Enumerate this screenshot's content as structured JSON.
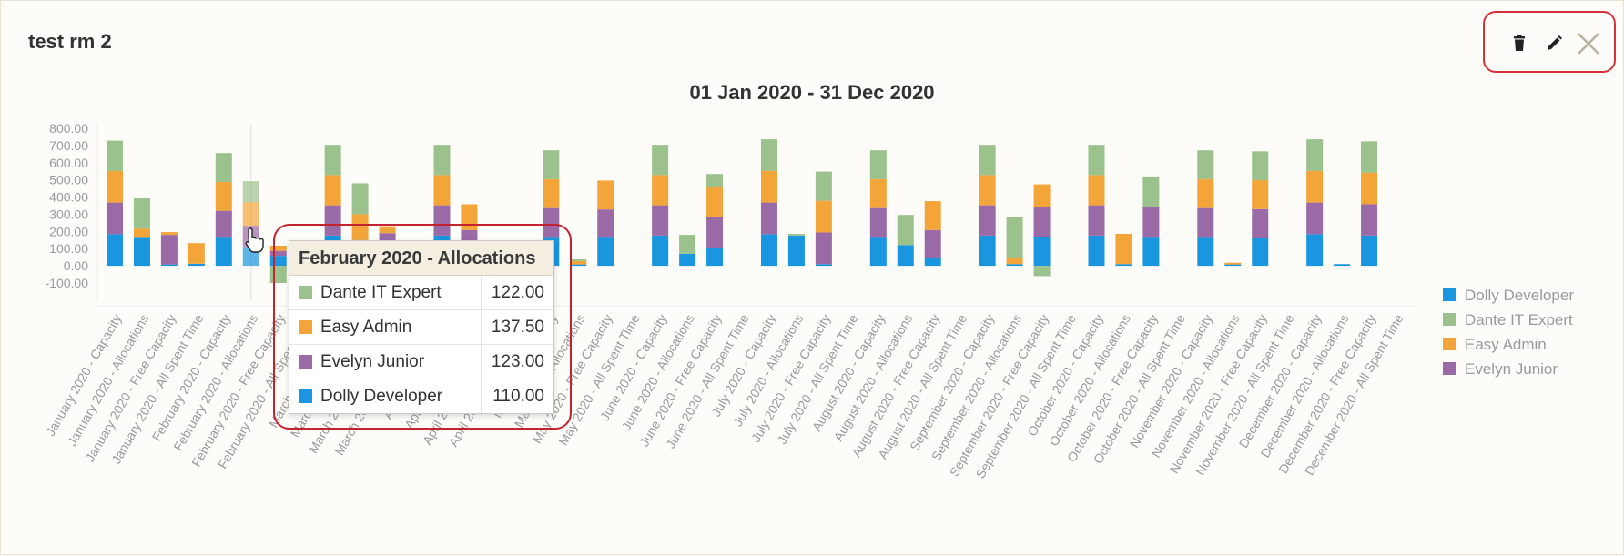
{
  "panel": {
    "title": "test rm 2"
  },
  "toolbar": {
    "delete_icon": "trash-icon",
    "edit_icon": "pencil-icon",
    "close_icon": "close-icon"
  },
  "colors": {
    "Dolly Developer": "#1a96e0",
    "Dante IT Expert": "#9bc28c",
    "Easy Admin": "#f3a53a",
    "Evelyn Junior": "#9a6aa7",
    "axis_text": "#9a9a9a",
    "title": "#333333",
    "accent_red": "#d8303a"
  },
  "chart_data": {
    "type": "bar",
    "stacked": true,
    "title": "01 Jan 2020 - 31 Dec 2020",
    "ylim": [
      -100,
      800
    ],
    "yticks": [
      "800.00",
      "700.00",
      "600.00",
      "500.00",
      "400.00",
      "300.00",
      "200.00",
      "100.00",
      "0.00",
      "-100.00"
    ],
    "legend": {
      "placement": "right",
      "entries": [
        "Dolly Developer",
        "Dante IT Expert",
        "Easy Admin",
        "Evelyn Junior"
      ]
    },
    "categories": [
      "January 2020 - Capacity",
      "January 2020 - Allocations",
      "January 2020 - Free Capacity",
      "January 2020 - All Spent Time",
      "February 2020 - Capacity",
      "February 2020 - Allocations",
      "February 2020 - Free Capacity",
      "February 2020 - All Spent Time",
      "March 2020 - Capacity",
      "March 2020 - Allocations",
      "March 2020 - Free Capacity",
      "March 2020 - All Spent Time",
      "April 2020 - Capacity",
      "April 2020 - Allocations",
      "April 2020 - Free Capacity",
      "April 2020 - All Spent Time",
      "May 2020 - Capacity",
      "May 2020 - Allocations",
      "May 2020 - Free Capacity",
      "May 2020 - All Spent Time",
      "June 2020 - Capacity",
      "June 2020 - Allocations",
      "June 2020 - Free Capacity",
      "June 2020 - All Spent Time",
      "July 2020 - Capacity",
      "July 2020 - Allocations",
      "July 2020 - Free Capacity",
      "July 2020 - All Spent Time",
      "August 2020 - Capacity",
      "August 2020 - Allocations",
      "August 2020 - Free Capacity",
      "August 2020 - All Spent Time",
      "September 2020 - Capacity",
      "September 2020 - Allocations",
      "September 2020 - Free Capacity",
      "September 2020 - All Spent Time",
      "October 2020 - Capacity",
      "October 2020 - Allocations",
      "October 2020 - Free Capacity",
      "October 2020 - All Spent Time",
      "November 2020 - Capacity",
      "November 2020 - Allocations",
      "November 2020 - Free Capacity",
      "November 2020 - All Spent Time",
      "December 2020 - Capacity",
      "December 2020 - Allocations",
      "December 2020 - Free Capacity",
      "December 2020 - All Spent Time"
    ],
    "series": [
      {
        "name": "Dolly Developer",
        "values": [
          184,
          168,
          8,
          12,
          168,
          110,
          58,
          0,
          176,
          80,
          0,
          0,
          176,
          78,
          0,
          0,
          168,
          8,
          168,
          0,
          176,
          70,
          106,
          0,
          184,
          176,
          10,
          0,
          168,
          120,
          44,
          0,
          176,
          10,
          170,
          0,
          176,
          10,
          168,
          0,
          168,
          8,
          162,
          0,
          184,
          10,
          176,
          0
        ]
      },
      {
        "name": "Evelyn Junior",
        "values": [
          184,
          0,
          172,
          0,
          152,
          123,
          29,
          0,
          176,
          70,
          190,
          0,
          176,
          130,
          0,
          0,
          168,
          0,
          160,
          0,
          176,
          0,
          176,
          0,
          184,
          0,
          184,
          0,
          168,
          0,
          164,
          0,
          176,
          0,
          170,
          0,
          176,
          0,
          176,
          0,
          168,
          0,
          168,
          0,
          184,
          0,
          182,
          0
        ]
      },
      {
        "name": "Easy Admin",
        "values": [
          184,
          48,
          16,
          120,
          168,
          137.5,
          30,
          0,
          176,
          150,
          40,
          0,
          176,
          150,
          0,
          0,
          168,
          20,
          168,
          0,
          176,
          0,
          176,
          0,
          184,
          0,
          184,
          0,
          168,
          0,
          168,
          0,
          176,
          36,
          134,
          0,
          176,
          176,
          0,
          0,
          168,
          10,
          168,
          0,
          184,
          0,
          184,
          0
        ]
      },
      {
        "name": "Dante IT Expert",
        "values": [
          176,
          176,
          0,
          0,
          168,
          122,
          -100,
          0,
          176,
          180,
          0,
          0,
          176,
          0,
          0,
          0,
          168,
          10,
          0,
          0,
          176,
          110,
          76,
          0,
          184,
          10,
          170,
          0,
          168,
          176,
          0,
          0,
          176,
          240,
          -60,
          0,
          176,
          0,
          176,
          0,
          168,
          0,
          168,
          0,
          184,
          0,
          182,
          0
        ]
      }
    ]
  },
  "tooltip": {
    "title": "February 2020 - Allocations",
    "rows": [
      {
        "name": "Dante IT Expert",
        "value": "122.00",
        "color": "#9bc28c"
      },
      {
        "name": "Easy Admin",
        "value": "137.50",
        "color": "#f3a53a"
      },
      {
        "name": "Evelyn Junior",
        "value": "123.00",
        "color": "#9a6aa7"
      },
      {
        "name": "Dolly Developer",
        "value": "110.00",
        "color": "#1a96e0"
      }
    ]
  }
}
